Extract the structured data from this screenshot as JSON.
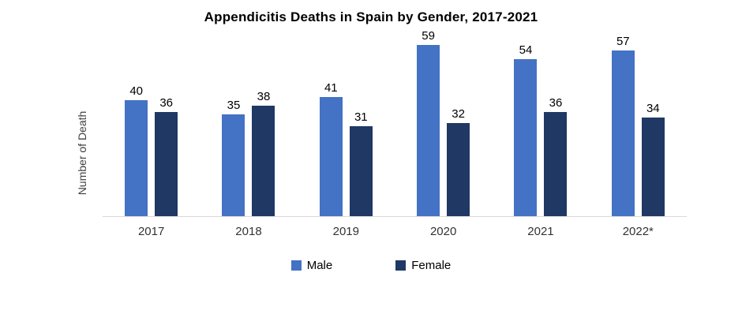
{
  "title": "Appendicitis Deaths in Spain by Gender, 2017-2021",
  "chart_data": {
    "type": "bar",
    "title": "Appendicitis Deaths in Spain by Gender, 2017-2021",
    "categories": [
      "2017",
      "2018",
      "2019",
      "2020",
      "2021",
      "2022*"
    ],
    "series": [
      {
        "name": "Male",
        "color": "#4472C4",
        "values": [
          40,
          35,
          41,
          59,
          54,
          57
        ]
      },
      {
        "name": "Female",
        "color": "#1F3864",
        "values": [
          36,
          38,
          31,
          32,
          36,
          34
        ]
      }
    ],
    "xlabel": "",
    "ylabel": "Number of Death",
    "ylim": [
      0,
      62
    ],
    "grid": false,
    "legend_position": "bottom",
    "value_labels": true
  }
}
